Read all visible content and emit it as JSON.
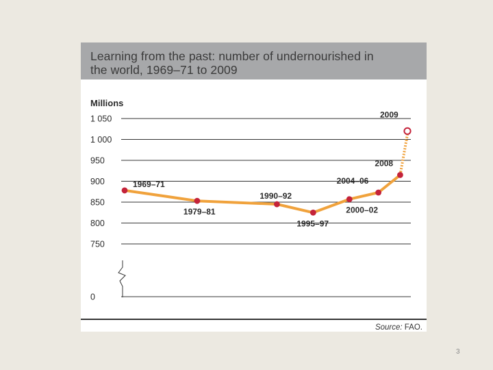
{
  "slide": {
    "page_number": "3"
  },
  "figure": {
    "title_line_1": "Learning from the past: number of undernourished in",
    "title_line_2": "the world, 1969–71 to 2009",
    "source_prefix": "Source:",
    "source_text": " FAO."
  },
  "chart_data": {
    "type": "line",
    "title": "Learning from the past: number of undernourished in the world, 1969–71 to 2009",
    "ylabel": "Millions",
    "xlabel": "",
    "y_axis_break": true,
    "ylim": [
      750,
      1050
    ],
    "y_ticks": [
      "1 050",
      "1 000",
      "950",
      "900",
      "850",
      "800",
      "750",
      "0"
    ],
    "y_tick_values": [
      1050,
      1000,
      950,
      900,
      850,
      800,
      750,
      0
    ],
    "categories": [
      "1969–71",
      "1979–81",
      "1990–92",
      "1995–97",
      "2000–02",
      "2004–06",
      "2008",
      "2009"
    ],
    "x_years": [
      1970,
      1980,
      1991,
      1996,
      2001,
      2005,
      2008,
      2009
    ],
    "values": [
      878,
      853,
      845,
      825,
      857,
      873,
      915,
      1020
    ],
    "projected_last": true,
    "colors": {
      "line": "#f0a23c",
      "point": "#c4233a",
      "projected_point_fill": "#ffffff",
      "grid": "#333333",
      "title_bar": "#a7a8aa"
    }
  }
}
